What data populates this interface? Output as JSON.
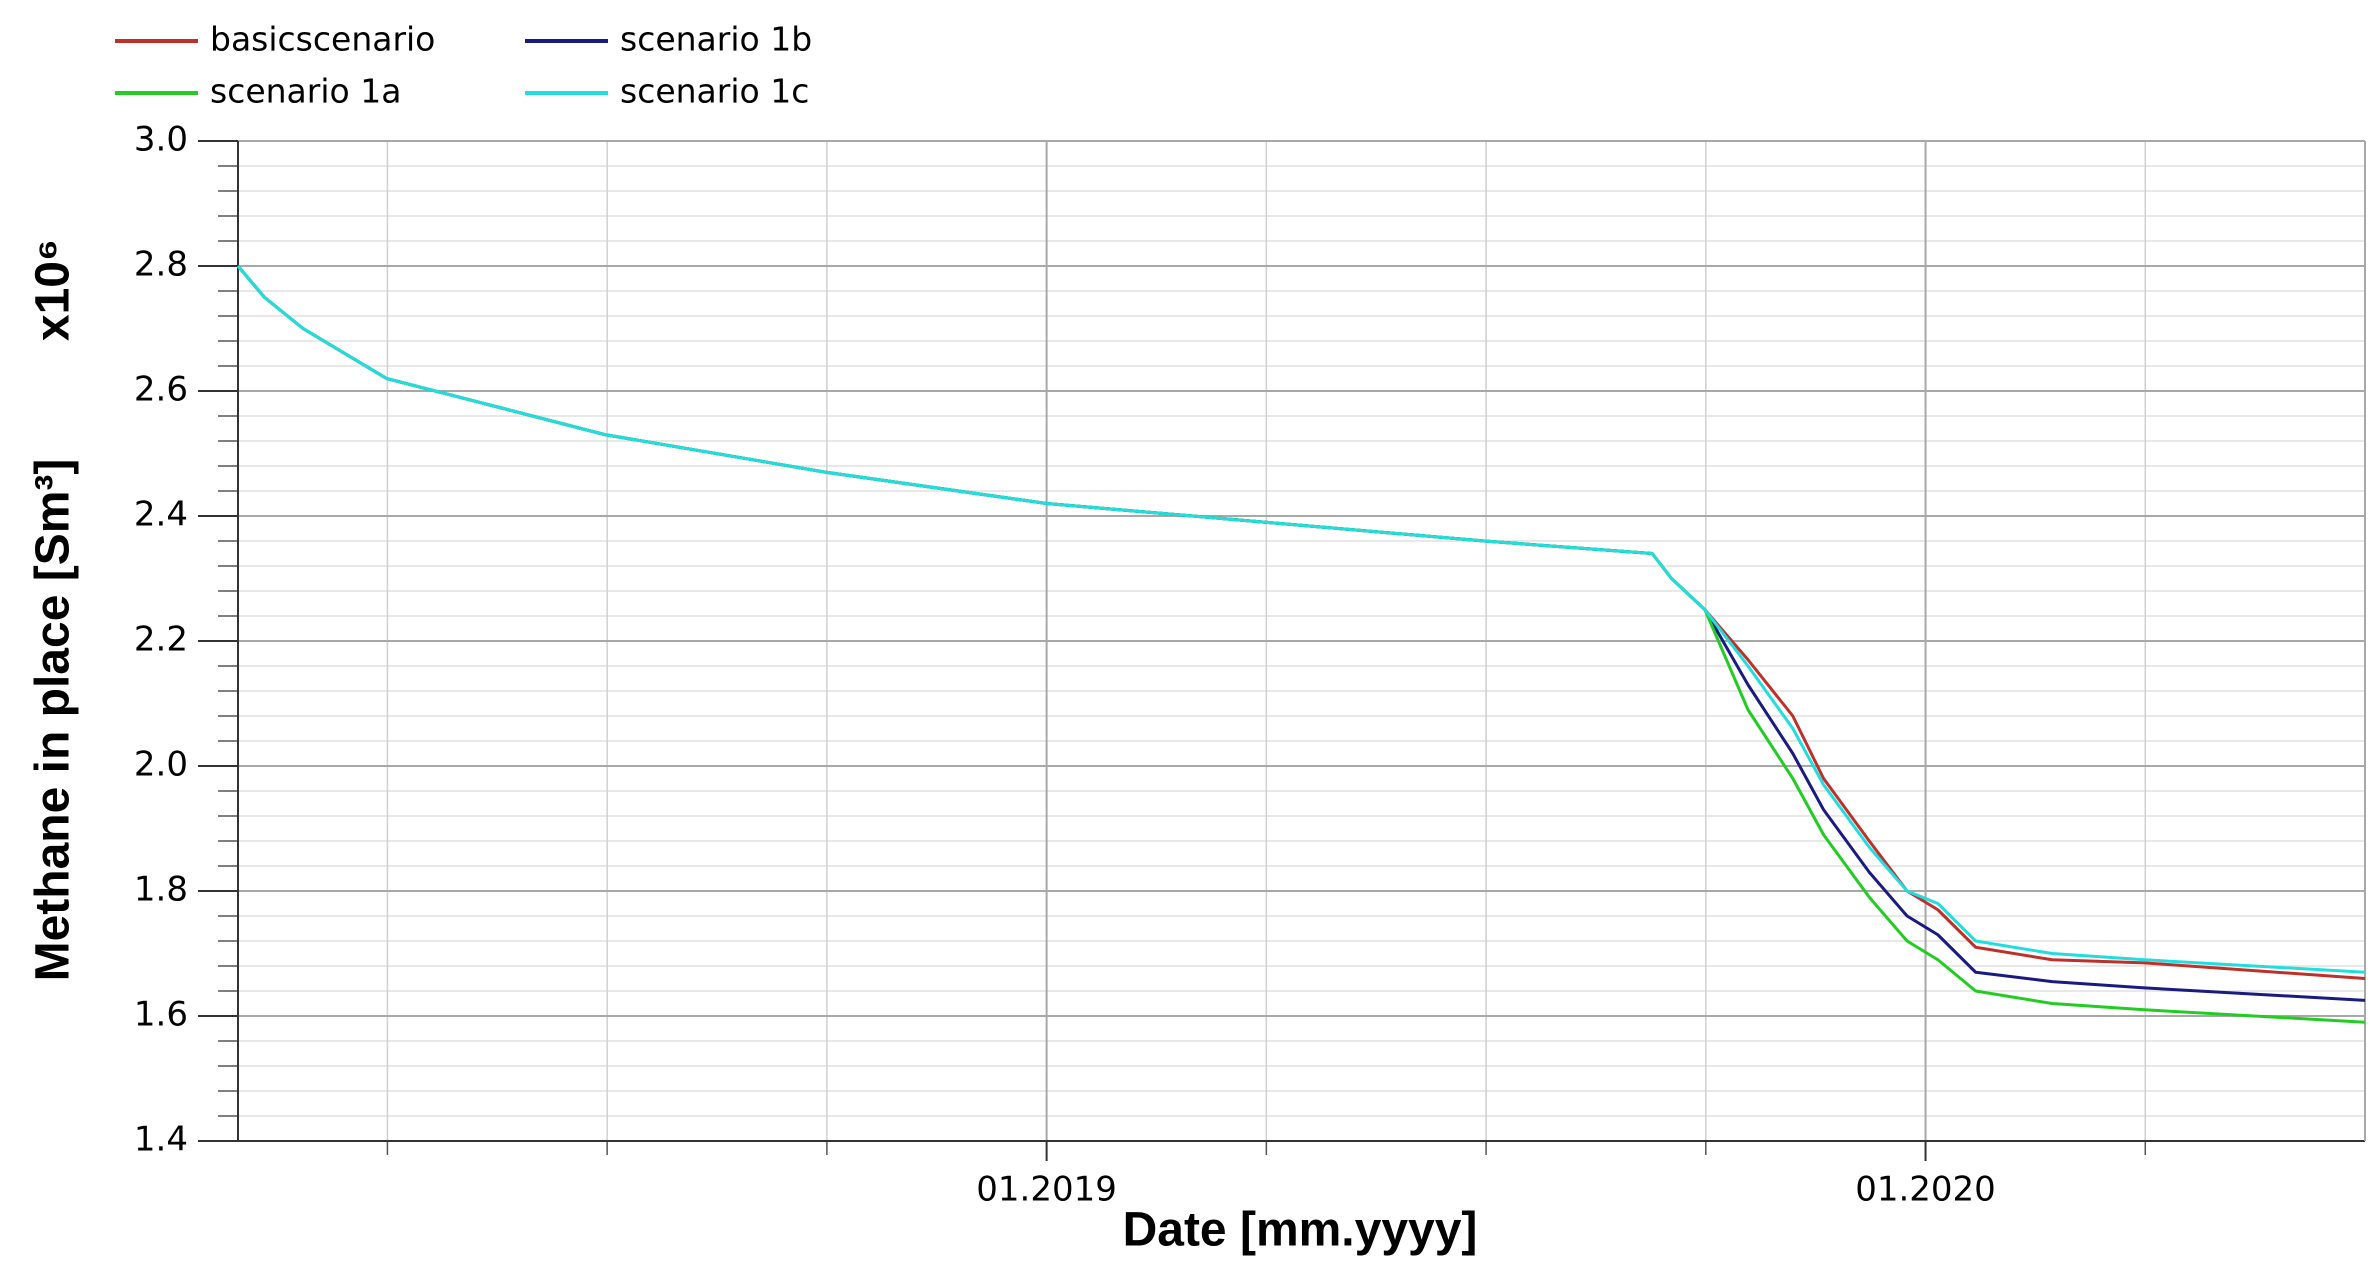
{
  "chart_data": {
    "type": "line",
    "y_label": "Methane in place [Sm³]",
    "y_multiplier": "x10⁶",
    "x_label": "Date [mm.yyyy]",
    "x": [
      2018.08,
      2018.11,
      2018.154,
      2018.249,
      2018.498,
      2018.749,
      2019.0,
      2019.249,
      2019.498,
      2019.689,
      2019.711,
      2019.749,
      2019.798,
      2019.849,
      2019.884,
      2019.936,
      2019.979,
      2020.014,
      2020.057,
      2020.144,
      2020.249,
      2020.5
    ],
    "series": [
      {
        "name": "basicscenario",
        "color": "#c0302a",
        "values": [
          2.8,
          2.75,
          2.7,
          2.62,
          2.53,
          2.47,
          2.42,
          2.39,
          2.36,
          2.34,
          2.3,
          2.25,
          2.17,
          2.08,
          1.98,
          1.88,
          1.8,
          1.77,
          1.71,
          1.69,
          1.685,
          1.66
        ]
      },
      {
        "name": "scenario 1b",
        "color": "#1a1a80",
        "values": [
          2.8,
          2.75,
          2.7,
          2.62,
          2.53,
          2.47,
          2.42,
          2.39,
          2.36,
          2.34,
          2.3,
          2.25,
          2.13,
          2.02,
          1.93,
          1.83,
          1.76,
          1.73,
          1.67,
          1.655,
          1.645,
          1.625
        ]
      },
      {
        "name": "scenario 1a",
        "color": "#22cc22",
        "values": [
          2.8,
          2.75,
          2.7,
          2.62,
          2.53,
          2.47,
          2.42,
          2.39,
          2.36,
          2.34,
          2.3,
          2.25,
          2.09,
          1.98,
          1.89,
          1.79,
          1.72,
          1.69,
          1.64,
          1.62,
          1.61,
          1.59
        ]
      },
      {
        "name": "scenario 1c",
        "color": "#22dddd",
        "values": [
          2.8,
          2.75,
          2.7,
          2.62,
          2.53,
          2.47,
          2.42,
          2.39,
          2.36,
          2.34,
          2.3,
          2.25,
          2.16,
          2.06,
          1.97,
          1.87,
          1.8,
          1.78,
          1.72,
          1.7,
          1.69,
          1.67
        ]
      }
    ],
    "legend_order": [
      0,
      1,
      2,
      3
    ],
    "xlim": [
      2018.08,
      2020.5
    ],
    "xticks": [
      {
        "value": 2019,
        "label": "01.2019"
      },
      {
        "value": 2020,
        "label": "01.2020"
      }
    ],
    "x_minor_ticks": [
      2018.25,
      2018.5,
      2018.75,
      2019.25,
      2019.5,
      2019.75,
      2020.25
    ],
    "ylim": [
      1.4,
      3.0
    ],
    "yticks": [
      {
        "value": 1.4,
        "label": "1.4"
      },
      {
        "value": 1.6,
        "label": "1.6"
      },
      {
        "value": 1.8,
        "label": "1.8"
      },
      {
        "value": 2.0,
        "label": "2.0"
      },
      {
        "value": 2.2,
        "label": "2.2"
      },
      {
        "value": 2.4,
        "label": "2.4"
      },
      {
        "value": 2.6,
        "label": "2.6"
      },
      {
        "value": 2.8,
        "label": "2.8"
      },
      {
        "value": 3.0,
        "label": "3.0"
      }
    ],
    "y_minor_ticks": [
      1.44,
      1.48,
      1.52,
      1.56,
      1.64,
      1.68,
      1.72,
      1.76,
      1.84,
      1.88,
      1.92,
      1.96,
      2.04,
      2.08,
      2.12,
      2.16,
      2.24,
      2.28,
      2.32,
      2.36,
      2.44,
      2.48,
      2.52,
      2.56,
      2.64,
      2.68,
      2.72,
      2.76,
      2.84,
      2.88,
      2.92,
      2.96
    ],
    "grid": true
  }
}
